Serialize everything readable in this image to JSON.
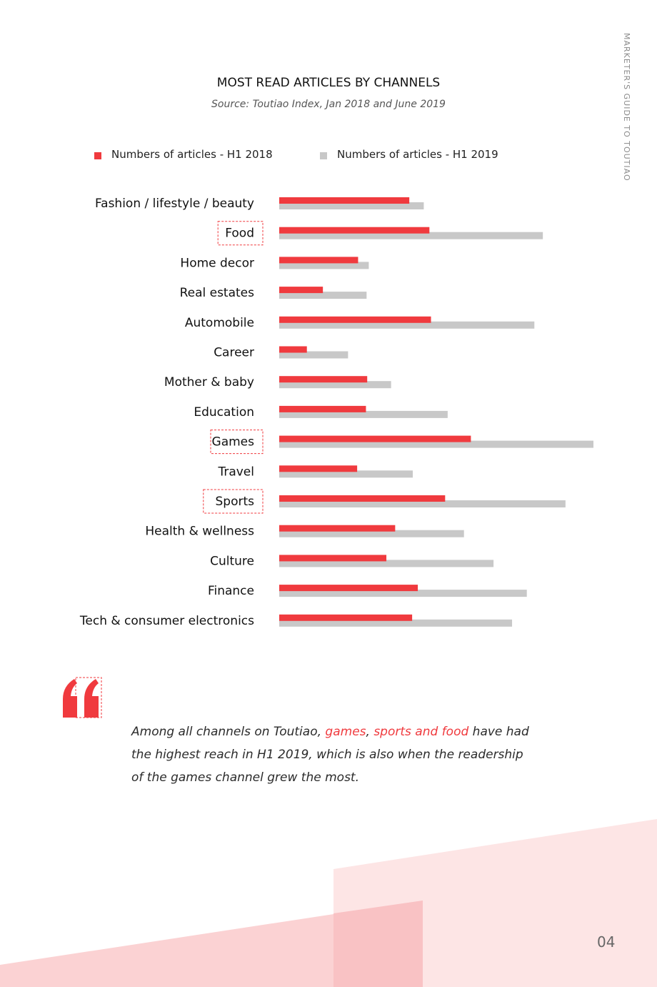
{
  "page": {
    "side_label": "MARKETER'S GUIDE TO TOUTIAO",
    "page_number": "04"
  },
  "quote": {
    "icon": "quote-mark-icon",
    "before": "Among all channels on Toutiao, ",
    "highlight_1": "games",
    "comma": ", ",
    "highlight_2": "sports and food",
    "after": " have had the highest reach in H1 2019, which is also when the readership of the games channel grew the most."
  },
  "colors": {
    "accent": "#f03a3e",
    "grey_bar": "#c8c8c8",
    "pale_pink": "#fde5e5"
  },
  "chart_data": {
    "type": "bar",
    "orientation": "horizontal",
    "title": "MOST READ ARTICLES BY CHANNELS",
    "subtitle": "Source: Toutiao Index, Jan 2018 and June 2019",
    "legend_position": "top",
    "grid": false,
    "xlim": [
      0,
      100
    ],
    "categories": [
      "Fashion / lifestyle / beauty",
      "Food",
      "Home decor",
      "Real estates",
      "Automobile",
      "Career",
      "Mother & baby",
      "Education",
      "Games",
      "Travel",
      "Sports",
      "Health & wellness",
      "Culture",
      "Finance",
      "Tech & consumer electronics"
    ],
    "highlighted": [
      "Food",
      "Games",
      "Sports"
    ],
    "series": [
      {
        "name": "Numbers of articles - H1 2018",
        "color": "#f03a3e",
        "values": [
          41.4,
          47.8,
          25.1,
          13.9,
          48.3,
          8.8,
          28.0,
          27.6,
          61.0,
          24.8,
          52.8,
          36.9,
          34.1,
          44.1,
          42.3
        ]
      },
      {
        "name": "Numbers of articles - H1 2019",
        "color": "#c8c8c8",
        "values": [
          46.0,
          83.9,
          28.5,
          27.8,
          81.2,
          21.9,
          35.6,
          53.6,
          100.0,
          42.5,
          91.1,
          58.8,
          68.2,
          78.8,
          74.1
        ]
      }
    ]
  }
}
